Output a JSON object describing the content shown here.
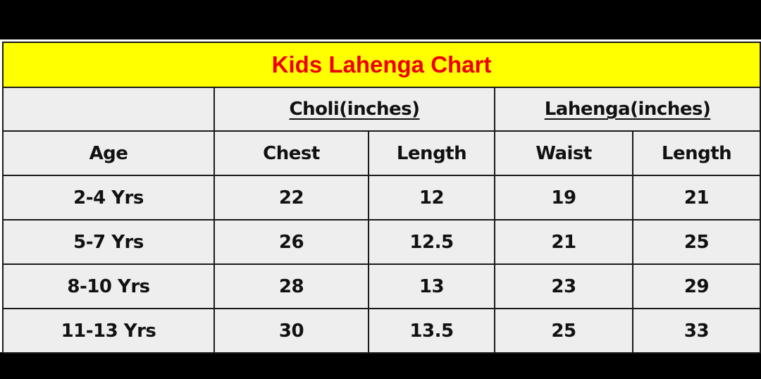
{
  "title": "Kids Lahenga Chart",
  "groups": {
    "choli": "Choli(inches)",
    "lahenga": "Lahenga(inches)"
  },
  "columns": {
    "age": "Age",
    "chest": "Chest",
    "choli_length": "Length",
    "waist": "Waist",
    "lahenga_length": "Length"
  },
  "rows": [
    {
      "age": "2-4 Yrs",
      "chest": "22",
      "choli_length": "12",
      "waist": "19",
      "lahenga_length": "21"
    },
    {
      "age": "5-7 Yrs",
      "chest": "26",
      "choli_length": "12.5",
      "waist": "21",
      "lahenga_length": "25"
    },
    {
      "age": "8-10 Yrs",
      "chest": "28",
      "choli_length": "13",
      "waist": "23",
      "lahenga_length": "29"
    },
    {
      "age": "11-13 Yrs",
      "chest": "30",
      "choli_length": "13.5",
      "waist": "25",
      "lahenga_length": "33"
    }
  ],
  "colors": {
    "title_background": "#ffff00",
    "title_text": "#ee0000",
    "cell_background": "#eeeeee",
    "border": "#1a1a1a"
  }
}
